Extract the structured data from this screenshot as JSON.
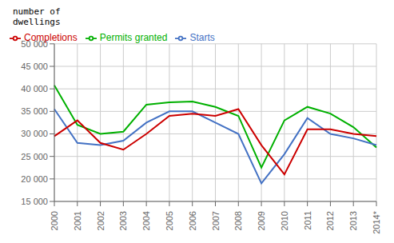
{
  "chart_data": {
    "type": "line",
    "title": "number of\ndwellings",
    "categories": [
      "2000",
      "2001",
      "2002",
      "2003",
      "2004",
      "2005",
      "2006",
      "2007",
      "2008",
      "2009",
      "2010",
      "2011",
      "2012",
      "2013",
      "2014*"
    ],
    "series": [
      {
        "name": "Permits granted",
        "color": "#00b000",
        "values": [
          40800,
          32000,
          30000,
          30500,
          36500,
          37000,
          37200,
          36000,
          34000,
          22500,
          33000,
          36000,
          34500,
          31500,
          27000
        ]
      },
      {
        "name": "Starts",
        "color": "#4472c4",
        "values": [
          35500,
          28000,
          27500,
          28500,
          32500,
          35000,
          35000,
          32500,
          30000,
          19000,
          25500,
          33500,
          30000,
          29000,
          27500
        ]
      },
      {
        "name": "Completions",
        "color": "#cc0000",
        "values": [
          29500,
          33000,
          28000,
          26500,
          30000,
          34000,
          34500,
          34000,
          35500,
          27500,
          21000,
          31000,
          31000,
          30000,
          29500
        ]
      }
    ],
    "ylim": [
      15000,
      50000
    ],
    "yticks": [
      {
        "value": 15000,
        "label": "15 000"
      },
      {
        "value": 20000,
        "label": "20 000"
      },
      {
        "value": 25000,
        "label": "25 000"
      },
      {
        "value": 30000,
        "label": "30 000"
      },
      {
        "value": 35000,
        "label": "35 000"
      },
      {
        "value": 40000,
        "label": "40 000"
      },
      {
        "value": 45000,
        "label": "45 000"
      },
      {
        "value": 50000,
        "label": "50 000"
      }
    ],
    "grid": true,
    "legend": "upper left"
  }
}
